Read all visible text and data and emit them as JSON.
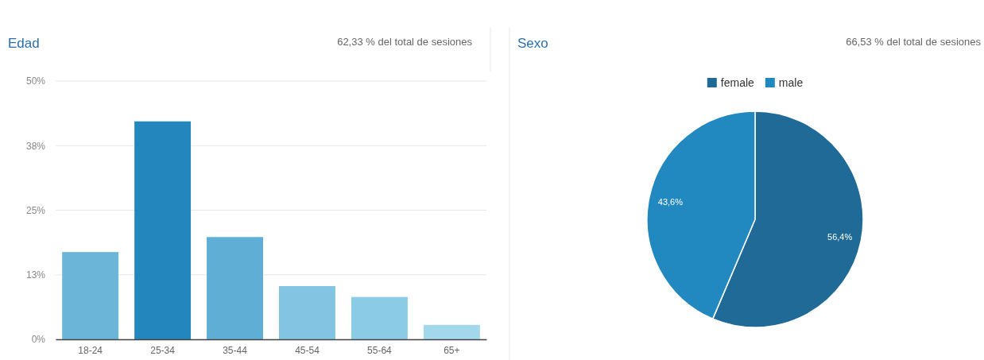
{
  "chart_data": [
    {
      "type": "bar",
      "title": "Edad",
      "subtitle": "62,33 % del total de sesiones",
      "categories": [
        "18-24",
        "25-34",
        "35-44",
        "45-54",
        "55-64",
        "65+"
      ],
      "values": [
        16.9,
        42.2,
        19.8,
        10.3,
        8.2,
        2.8
      ],
      "colors": [
        "#6ab5d8",
        "#2387bd",
        "#5faed6",
        "#82c4e2",
        "#8bcbe6",
        "#a3d7ec"
      ],
      "ylim": [
        0,
        50
      ],
      "yticks": [
        {
          "value": 0,
          "label": "0%"
        },
        {
          "value": 12.5,
          "label": "13%"
        },
        {
          "value": 25,
          "label": "25%"
        },
        {
          "value": 37.5,
          "label": "38%"
        },
        {
          "value": 50,
          "label": "50%"
        }
      ],
      "grid": "y"
    },
    {
      "type": "pie",
      "title": "Sexo",
      "subtitle": "66,53 % del total de sesiones",
      "categories": [
        "female",
        "male"
      ],
      "values": [
        56.4,
        43.6
      ],
      "colors": [
        "#1f6a96",
        "#2288c0"
      ],
      "value_labels": [
        "56,4%",
        "43,6%"
      ],
      "legend": "top"
    }
  ]
}
